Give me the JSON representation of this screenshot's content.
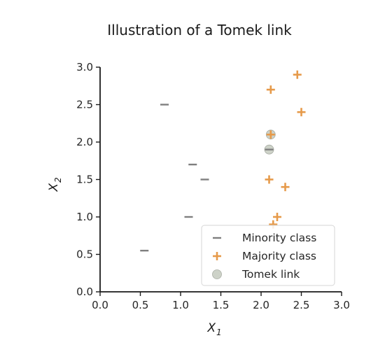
{
  "chart_data": {
    "type": "scatter",
    "title": "Illustration of a Tomek link",
    "xlabel": {
      "main": "X",
      "sub": "1"
    },
    "ylabel": {
      "main": "X",
      "sub": "2"
    },
    "xlim": [
      0,
      3
    ],
    "ylim": [
      0,
      3
    ],
    "xticks": [
      "0.0",
      "0.5",
      "1.0",
      "1.5",
      "2.0",
      "2.5",
      "3.0"
    ],
    "yticks": [
      "0.0",
      "0.5",
      "1.0",
      "1.5",
      "2.0",
      "2.5",
      "3.0"
    ],
    "grid": false,
    "legend_position": "lower-right",
    "series": [
      {
        "name": "Minority class",
        "marker": "minus",
        "color": "#7f7f7f",
        "points": [
          [
            0.55,
            0.55
          ],
          [
            0.8,
            2.5
          ],
          [
            1.1,
            1.0
          ],
          [
            1.15,
            1.7
          ],
          [
            1.3,
            1.5
          ],
          [
            2.1,
            1.9
          ]
        ]
      },
      {
        "name": "Majority class",
        "marker": "plus",
        "color": "#e69a4a",
        "points": [
          [
            2.12,
            2.1
          ],
          [
            2.1,
            1.5
          ],
          [
            2.12,
            2.7
          ],
          [
            2.45,
            2.9
          ],
          [
            2.5,
            2.4
          ],
          [
            2.3,
            1.4
          ],
          [
            2.2,
            1.0
          ],
          [
            2.15,
            0.9
          ]
        ]
      },
      {
        "name": "Tomek link",
        "marker": "circle",
        "color": "#c8cdc2",
        "points": [
          [
            2.12,
            2.1
          ],
          [
            2.1,
            1.9
          ]
        ]
      }
    ]
  }
}
